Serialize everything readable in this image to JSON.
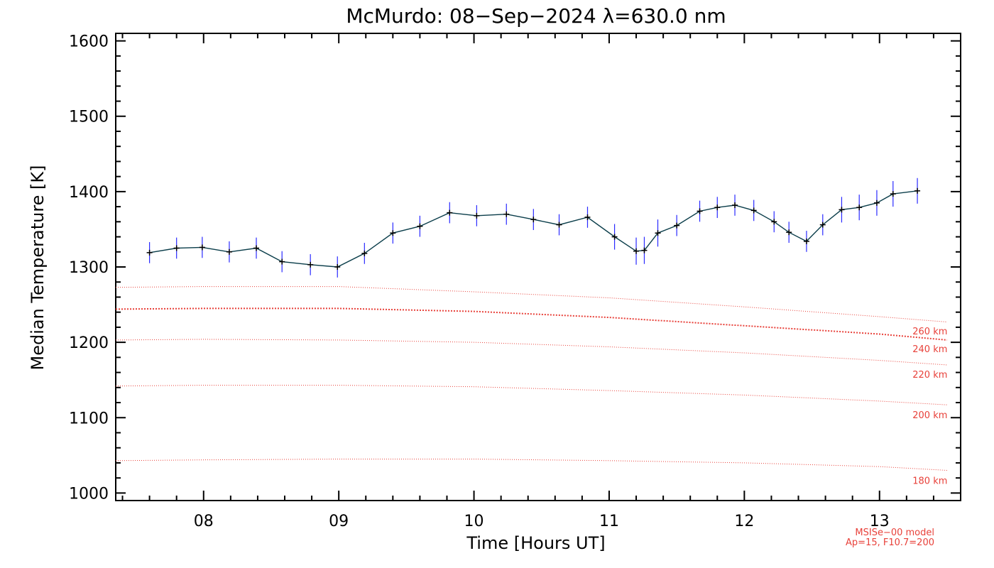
{
  "chart_data": {
    "type": "line",
    "title": "McMurdo: 08−Sep−2024 λ=630.0 nm",
    "xlabel": "Time [Hours UT]",
    "ylabel": "Median Temperature [K]",
    "xlim": [
      7.35,
      13.6
    ],
    "ylim": [
      990,
      1610
    ],
    "x_ticks": [
      8,
      9,
      10,
      11,
      12,
      13
    ],
    "x_tick_labels": [
      "08",
      "09",
      "10",
      "11",
      "12",
      "13"
    ],
    "y_ticks": [
      1000,
      1100,
      1200,
      1300,
      1400,
      1500,
      1600
    ],
    "y_tick_labels": [
      "1000",
      "1100",
      "1200",
      "1300",
      "1400",
      "1500",
      "1600"
    ],
    "grid": false,
    "measurement": {
      "line_color": "#0a3d4a",
      "error_color": "#2a2aff",
      "x": [
        7.6,
        7.8,
        7.99,
        8.19,
        8.39,
        8.58,
        8.79,
        8.99,
        9.19,
        9.4,
        9.6,
        9.82,
        10.02,
        10.24,
        10.44,
        10.63,
        10.84,
        11.04,
        11.2,
        11.26,
        11.36,
        11.5,
        11.67,
        11.8,
        11.93,
        12.07,
        12.22,
        12.33,
        12.46,
        12.58,
        12.72,
        12.85,
        12.98,
        13.1,
        13.28
      ],
      "y": [
        1319,
        1325,
        1326,
        1320,
        1325,
        1307,
        1303,
        1300,
        1318,
        1345,
        1354,
        1372,
        1368,
        1370,
        1363,
        1356,
        1366,
        1340,
        1321,
        1322,
        1345,
        1355,
        1374,
        1379,
        1382,
        1375,
        1360,
        1346,
        1334,
        1356,
        1376,
        1379,
        1385,
        1397,
        1401
      ],
      "err": [
        14,
        14,
        14,
        14,
        14,
        14,
        14,
        14,
        14,
        14,
        14,
        14,
        14,
        14,
        14,
        14,
        14,
        17,
        18,
        18,
        18,
        14,
        14,
        14,
        14,
        14,
        14,
        14,
        14,
        14,
        17,
        17,
        17,
        17,
        17
      ]
    },
    "model": {
      "color": "#e8413a",
      "label_line1": "MSISe−00 model",
      "label_line2": "Ap=15, F10.7=200",
      "x": [
        7.35,
        8.0,
        9.0,
        10.0,
        11.0,
        12.0,
        13.0,
        13.5
      ],
      "series": [
        {
          "name": "260 km",
          "y": [
            1273,
            1274,
            1274,
            1267,
            1259,
            1247,
            1234,
            1227
          ]
        },
        {
          "name": "240 km",
          "y": [
            1244,
            1245,
            1245,
            1241,
            1233,
            1222,
            1211,
            1203
          ],
          "bold": true
        },
        {
          "name": "220 km",
          "y": [
            1203,
            1204,
            1203,
            1200,
            1194,
            1186,
            1176,
            1170
          ]
        },
        {
          "name": "200 km",
          "y": [
            1142,
            1143,
            1143,
            1141,
            1136,
            1130,
            1122,
            1117
          ]
        },
        {
          "name": "180 km",
          "y": [
            1043,
            1044,
            1045,
            1045,
            1043,
            1040,
            1035,
            1030
          ]
        }
      ],
      "label_x": 13.2
    }
  }
}
